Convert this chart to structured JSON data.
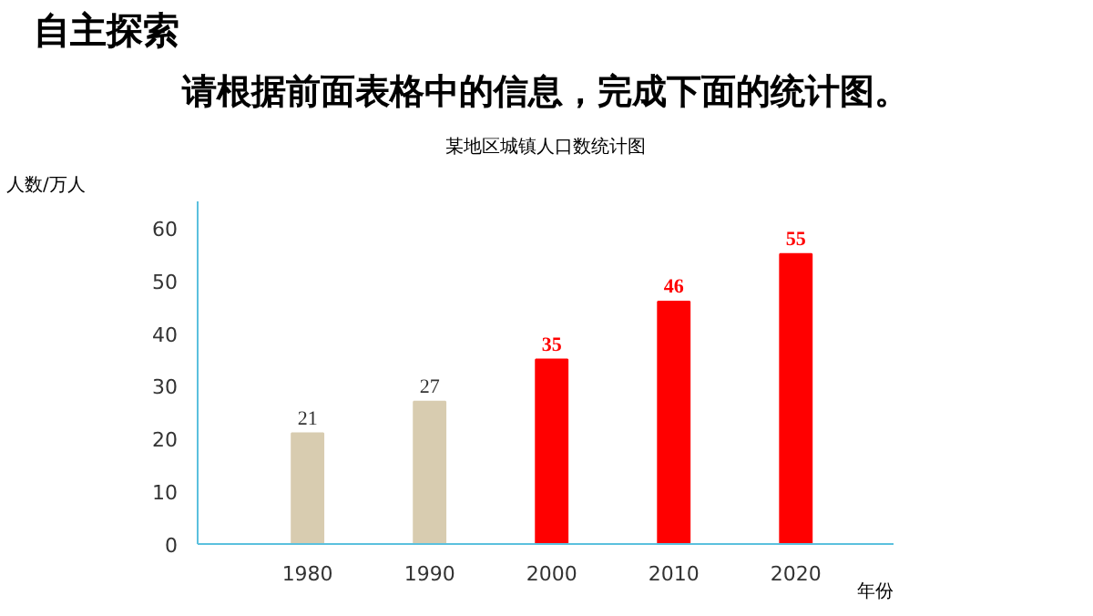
{
  "chart_data": {
    "type": "bar",
    "title": "某地区城镇人口数统计图",
    "annotations": [
      "自主探索",
      "请根据前面表格中的信息，完成下面的统计图。"
    ],
    "xlabel": "年份",
    "ylabel": "人数/万人",
    "categories": [
      "1980",
      "1990",
      "2000",
      "2010",
      "2020"
    ],
    "series": [
      {
        "color": "#d8ccb0",
        "values": [
          21,
          27,
          null,
          null,
          null
        ]
      },
      {
        "color": "#ff0000",
        "values": [
          null,
          null,
          35,
          46,
          55
        ]
      }
    ],
    "ylim": [
      0,
      65
    ],
    "yticks": [
      0,
      10,
      20,
      30,
      40,
      50,
      60
    ],
    "data_labels": true,
    "grid": false
  }
}
